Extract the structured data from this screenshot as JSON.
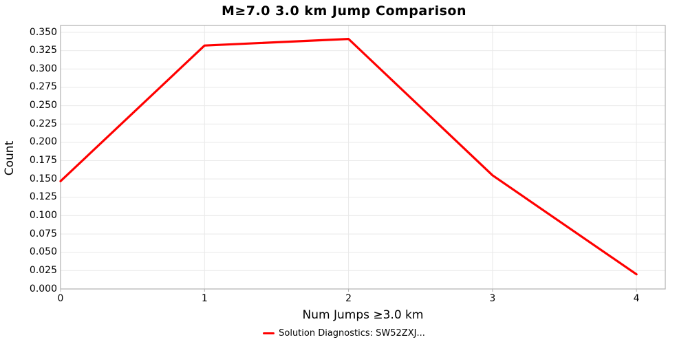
{
  "chart_data": {
    "type": "line",
    "title": "M≥7.0 3.0 km Jump Comparison",
    "xlabel": "Num Jumps ≥3.0 km",
    "ylabel": "Count",
    "x": [
      0,
      1,
      2,
      3,
      4
    ],
    "series": [
      {
        "name": "Solution Diagnostics: SW52ZXJ...",
        "color": "#ff0000",
        "values": [
          0.147,
          0.332,
          0.341,
          0.155,
          0.02
        ]
      }
    ],
    "xlim": [
      0,
      4.2
    ],
    "ylim": [
      0,
      0.3594
    ],
    "xticks": [
      0,
      1,
      2,
      3,
      4
    ],
    "xtick_labels": [
      "0",
      "1",
      "2",
      "3",
      "4"
    ],
    "ytick_values": [
      0.0,
      0.025,
      0.05,
      0.075,
      0.1,
      0.125,
      0.15,
      0.175,
      0.2,
      0.225,
      0.25,
      0.275,
      0.3,
      0.325,
      0.35
    ],
    "ytick_labels": [
      "0.000",
      "0.025",
      "0.050",
      "0.075",
      "0.100",
      "0.125",
      "0.150",
      "0.175",
      "0.200",
      "0.225",
      "0.250",
      "0.275",
      "0.300",
      "0.325",
      "0.350"
    ],
    "grid": true,
    "legend_position": "bottom"
  },
  "colors": {
    "background": "#ffffff",
    "frame": "#b0b0b0",
    "grid": "#e9e9e9",
    "tick": "#b0b0b0",
    "text": "#000000",
    "line": "#ff0000"
  }
}
